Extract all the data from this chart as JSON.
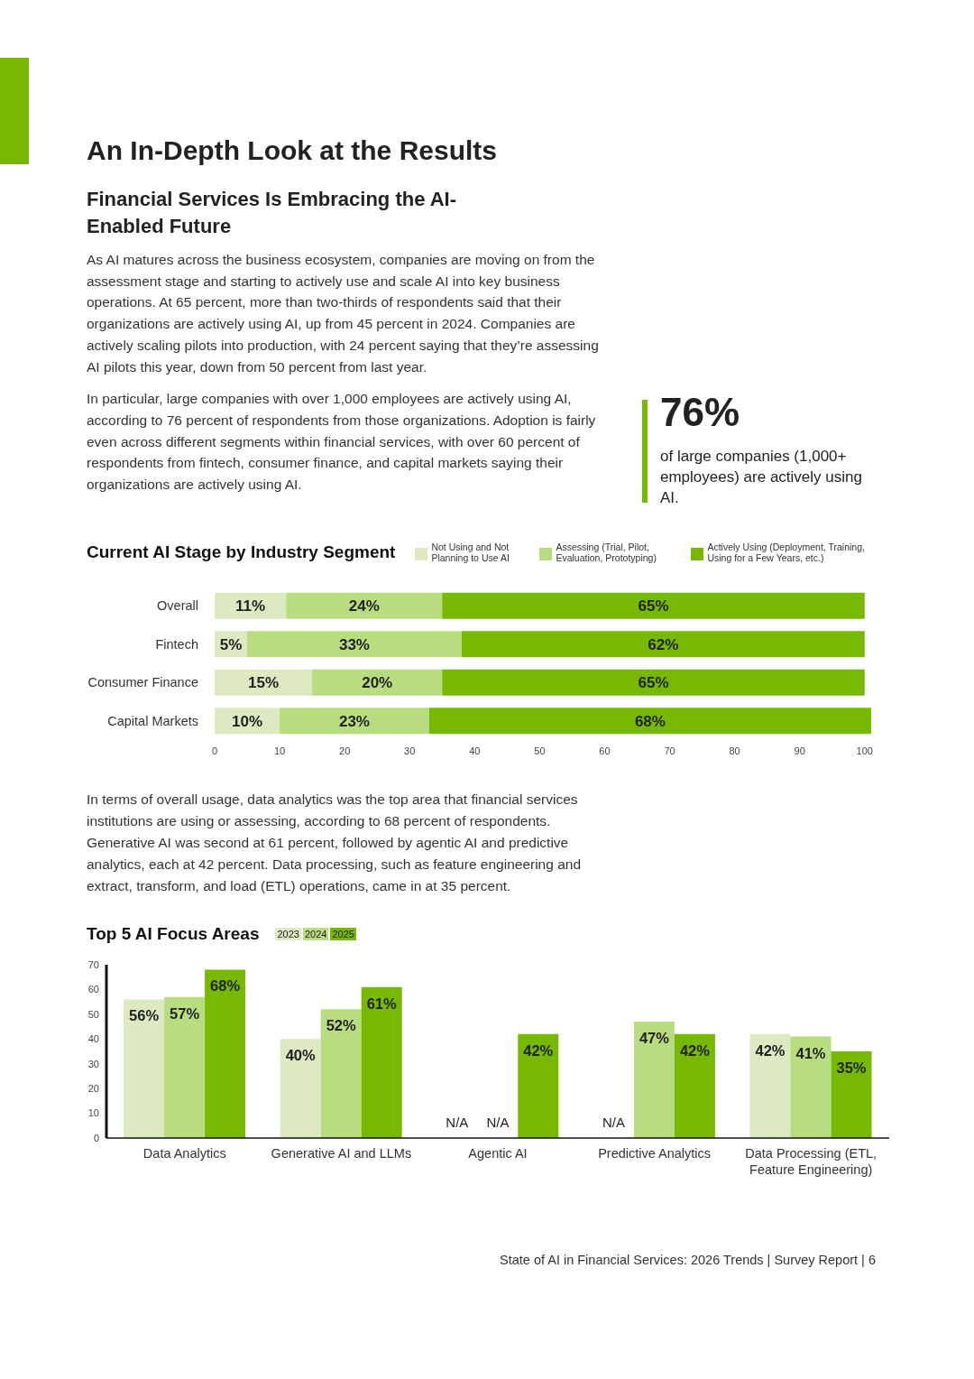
{
  "chart_data": [
    {
      "type": "other",
      "title": "An In-Depth Look at the Results",
      "subtitle": "Financial Services Is Embracing the AI-Enabled Future",
      "annotations": [
        "As AI matures across the business ecosystem, companies are moving on from the assessment stage and starting to actively use and scale AI into key business operations. At 65 percent, more than two-thirds of respondents said that their organizations are actively using AI, up from 45 percent in 2024. Companies are actively scaling pilots into production, with 24 percent saying that they’re assessing AI pilots this year, down from 50 percent from last year.",
        "In particular, large companies with over 1,000 employees are actively using AI, according to 76 percent of respondents from those organizations. Adoption is fairly even across different segments within financial services, with over 60 percent of respondents from fintech, consumer finance, and capital markets saying their organizations are actively using AI.",
        "76%",
        "of large companies (1,000+ employees) are actively using AI."
      ]
    },
    {
      "type": "bar",
      "title": "Current AI Stage by Industry Segment",
      "orientation": "horizontal",
      "stacked": true,
      "legend": "top",
      "grid": false,
      "categories": [
        "Overall",
        "Fintech",
        "Consumer Finance",
        "Capital Markets"
      ],
      "xlim": [
        0,
        101
      ],
      "xticks": [
        0,
        10,
        20,
        30,
        40,
        50,
        60,
        70,
        80,
        90,
        100
      ],
      "series": [
        {
          "name": "Not Using and Not Planning to Use AI",
          "color": "#dde9c0",
          "values": [
            11,
            5,
            15,
            10
          ],
          "value_labels": [
            "11%",
            "5%",
            "15%",
            "10%"
          ]
        },
        {
          "name": "Assessing (Trial, Pilot, Evaluation, Prototyping)",
          "color": "#b8dc80",
          "values": [
            24,
            33,
            20,
            23
          ],
          "value_labels": [
            "24%",
            "33%",
            "20%",
            "23%"
          ]
        },
        {
          "name": "Actively Using (Deployment, Training, Using for a Few Years, etc.)",
          "color": "#76b900",
          "values": [
            65,
            62,
            65,
            68
          ],
          "value_labels": [
            "65%",
            "62%",
            "65%",
            "68%"
          ]
        }
      ]
    },
    {
      "type": "bar",
      "title": "Top 5 AI Focus Areas",
      "legend": "top",
      "grid": false,
      "categories": [
        "Data Analytics",
        "Generative AI and LLMs",
        "Agentic AI",
        "Predictive Analytics",
        "Data Processing (ETL, Feature Engineering)"
      ],
      "ylim": [
        0,
        70
      ],
      "yticks": [
        0,
        10,
        20,
        30,
        40,
        50,
        60,
        70
      ],
      "series": [
        {
          "name": "2023",
          "color": "#dde9c0",
          "values": [
            56,
            40,
            null,
            null,
            42
          ],
          "value_labels": [
            "56%",
            "40%",
            "N/A",
            "N/A",
            "42%"
          ]
        },
        {
          "name": "2024",
          "color": "#b8dc80",
          "values": [
            57,
            52,
            null,
            47,
            41
          ],
          "value_labels": [
            "57%",
            "52%",
            "N/A",
            "47%",
            "41%"
          ]
        },
        {
          "name": "2025",
          "color": "#76b900",
          "values": [
            68,
            61,
            42,
            42,
            35
          ],
          "value_labels": [
            "68%",
            "61%",
            "42%",
            "42%",
            "35%"
          ]
        }
      ],
      "annotations": [
        "In terms of overall usage, data analytics was the top area that financial services institutions are using or assessing, according to 68 percent of respondents. Generative AI was second at 61 percent, followed by agentic AI and predictive analytics, each at 42 percent. Data processing, such as feature engineering and extract, transform, and load (ETL) operations, came in at 35 percent.",
        "State of AI in Financial Services: 2026 Trends | Survey Report | 6"
      ]
    }
  ]
}
